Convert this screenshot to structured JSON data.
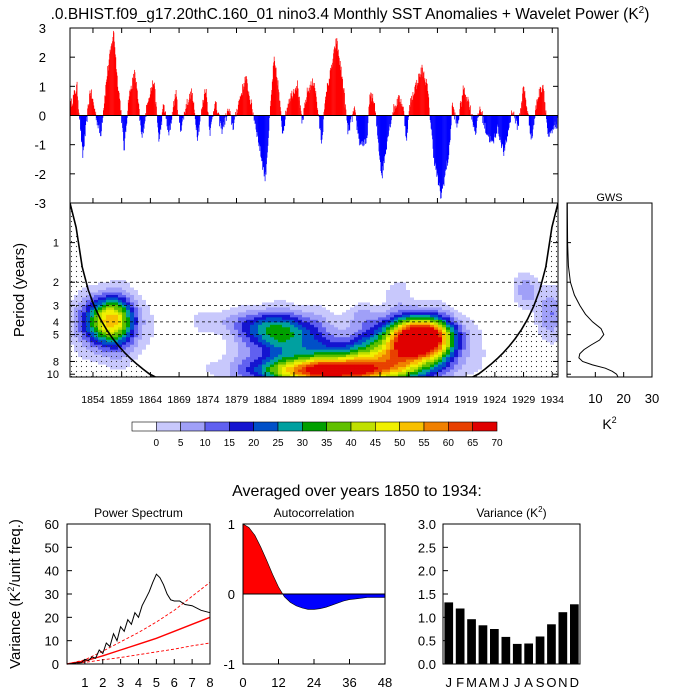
{
  "header": {
    "title": ".0.BHIST.f09_g17.20thC.160_01 nino3.4 Monthly SST Anomalies + Wavelet Power (K",
    "title_sup": "2",
    "title_end": ")",
    "averaged_label": "Averaged over years 1850 to 1934:"
  },
  "colors": {
    "positive": "#ff0000",
    "negative": "#0000ff",
    "bars": "#000000",
    "coi_fill": "#a8a8f8"
  },
  "chart_data": [
    {
      "id": "sst_anomaly",
      "type": "bar",
      "title": "nino3.4 Monthly SST Anomalies",
      "xlim": [
        1850,
        1935
      ],
      "ylim": [
        -3,
        3
      ],
      "yticks": [
        3,
        2,
        1,
        0,
        -1,
        -2,
        -3
      ],
      "key_years": [
        1850,
        1851.2,
        1852.2,
        1853.5,
        1855.3,
        1856.5,
        1857.6,
        1858.2,
        1858.8,
        1859.4,
        1860.2,
        1861.3,
        1862.5,
        1863.6,
        1864.6,
        1865.5,
        1866.3,
        1867.2,
        1868.4,
        1869.2,
        1870.3,
        1871.2,
        1872.2,
        1873.6,
        1874.4,
        1875.2,
        1876.4,
        1877.6,
        1878.4,
        1879.3,
        1880.6,
        1881.4,
        1882.3,
        1884.0,
        1885.5,
        1886.2,
        1887.0,
        1888.0,
        1889.6,
        1890.4,
        1891.3,
        1892.5,
        1893.8,
        1894.6,
        1895.4,
        1896.4,
        1897.6,
        1898.4,
        1899.5,
        1900.4,
        1901.6,
        1902.3,
        1903.0,
        1904.3,
        1905.4,
        1906.3,
        1907.4,
        1908.0,
        1908.6,
        1909.2,
        1910.0,
        1911.3,
        1912.2,
        1913.4,
        1914.6,
        1916.0,
        1916.6,
        1917.4,
        1918.5,
        1919.4,
        1920.6,
        1921.4,
        1922.4,
        1923.6,
        1924.4,
        1925.6,
        1927.0,
        1928.0,
        1929.0,
        1930.4,
        1931.4,
        1932.4,
        1933.3,
        1935.0
      ],
      "key_values": [
        0.3,
        1.0,
        -1.4,
        0.9,
        -0.7,
        1.5,
        2.9,
        1.3,
        0.3,
        -1.2,
        0.6,
        1.5,
        -0.8,
        0.6,
        1.2,
        -0.9,
        0.4,
        -0.7,
        0.8,
        -0.5,
        0.4,
        0.8,
        -0.7,
        1.0,
        -0.6,
        0.5,
        -0.5,
        0.2,
        -0.4,
        0.4,
        1.3,
        0.5,
        -0.3,
        -2.2,
        1.9,
        1.1,
        -0.6,
        0.5,
        1.1,
        -0.3,
        0.8,
        1.2,
        -0.9,
        0.8,
        1.5,
        2.6,
        1.0,
        -0.6,
        0.2,
        -0.9,
        -1.0,
        0.8,
        0.4,
        -2.1,
        -0.6,
        0.2,
        0.6,
        0.3,
        -0.8,
        0.4,
        0.9,
        1.6,
        1.0,
        -1.5,
        -2.8,
        -1.3,
        0.4,
        -0.4,
        0.9,
        0.5,
        -0.6,
        0.3,
        -0.5,
        -1.0,
        -0.4,
        -1.3,
        0.2,
        -0.4,
        1.0,
        -0.8,
        0.6,
        1.1,
        -0.8,
        -0.2
      ],
      "noise_amplitude": 0.18
    },
    {
      "id": "wavelet_power",
      "type": "heatmap",
      "ylabel": "Period (years)",
      "xlim": [
        1850,
        1935
      ],
      "ylim": [
        0.5,
        10.5
      ],
      "xticks": [
        1854,
        1859,
        1864,
        1869,
        1874,
        1879,
        1884,
        1889,
        1894,
        1899,
        1904,
        1909,
        1914,
        1919,
        1924,
        1929,
        1934
      ],
      "yticks": [
        1,
        2,
        3,
        4,
        5,
        8,
        10
      ],
      "dashed_periods": [
        2,
        3,
        4,
        5
      ],
      "levels": [
        0,
        5,
        10,
        15,
        20,
        25,
        30,
        35,
        40,
        45,
        50,
        55,
        60,
        65,
        70
      ],
      "level_colors": [
        "#ffffff",
        "#c8c8fc",
        "#a0a0f8",
        "#6060f0",
        "#1414d0",
        "#0050c8",
        "#00a0a0",
        "#00a000",
        "#60c000",
        "#c0e000",
        "#f0f000",
        "#f8c000",
        "#f08000",
        "#e84000",
        "#e00000"
      ],
      "blobs": [
        {
          "year": 1854.5,
          "period": 4.0,
          "sy": 2.8,
          "sp": 0.42,
          "amp": 16
        },
        {
          "year": 1857.5,
          "period": 3.8,
          "sy": 2.6,
          "sp": 0.4,
          "amp": 36
        },
        {
          "year": 1858.0,
          "period": 4.6,
          "sy": 3.5,
          "sp": 0.55,
          "amp": 14
        },
        {
          "year": 1876.0,
          "period": 4.0,
          "sy": 3.5,
          "sp": 0.22,
          "amp": 7
        },
        {
          "year": 1888.0,
          "period": 4.8,
          "sy": 4.5,
          "sp": 0.36,
          "amp": 30
        },
        {
          "year": 1883.0,
          "period": 4.4,
          "sy": 3.0,
          "sp": 0.3,
          "amp": 14
        },
        {
          "year": 1895.0,
          "period": 9.6,
          "sy": 8.0,
          "sp": 0.22,
          "amp": 58
        },
        {
          "year": 1894.0,
          "period": 8.0,
          "sy": 9.0,
          "sp": 0.35,
          "amp": 22
        },
        {
          "year": 1911.5,
          "period": 5.2,
          "sy": 3.6,
          "sp": 0.34,
          "amp": 72
        },
        {
          "year": 1908.0,
          "period": 6.0,
          "sy": 5.5,
          "sp": 0.5,
          "amp": 30
        },
        {
          "year": 1906.0,
          "period": 8.0,
          "sy": 7.0,
          "sp": 0.35,
          "amp": 20
        },
        {
          "year": 1907.0,
          "period": 2.4,
          "sy": 1.5,
          "sp": 0.22,
          "amp": 6
        },
        {
          "year": 1929.5,
          "period": 2.3,
          "sy": 1.4,
          "sp": 0.28,
          "amp": 12
        },
        {
          "year": 1933.5,
          "period": 3.5,
          "sy": 1.6,
          "sp": 0.45,
          "amp": 14
        },
        {
          "year": 1901.0,
          "period": 3.6,
          "sy": 2.0,
          "sp": 0.18,
          "amp": 6
        }
      ],
      "colorbar_labels": [
        "0",
        "5",
        "10",
        "15",
        "20",
        "25",
        "30",
        "35",
        "40",
        "45",
        "50",
        "55",
        "60",
        "65",
        "70"
      ]
    },
    {
      "id": "gws",
      "type": "line",
      "title": "GWS",
      "xlabel": "K",
      "xlabel_sup": "2",
      "xlim": [
        0,
        30
      ],
      "xticks": [
        10,
        20,
        30
      ],
      "period": [
        0.5,
        1.0,
        1.5,
        2.0,
        2.5,
        3.0,
        3.5,
        4.0,
        4.5,
        5.0,
        5.5,
        6.0,
        6.5,
        7.0,
        7.5,
        8.0,
        8.5,
        9.0,
        9.5,
        10.0,
        10.5
      ],
      "power": [
        0.1,
        0.2,
        0.5,
        1.2,
        2.6,
        4.5,
        6.5,
        9.0,
        12.0,
        13.0,
        11.5,
        8.5,
        6.0,
        4.5,
        4.2,
        5.5,
        9.0,
        13.5,
        16.0,
        17.5,
        18.0
      ]
    },
    {
      "id": "power_spectrum",
      "type": "line",
      "title": "Power Spectrum",
      "ylabel": "Variance (K",
      "ylabel_sup": "2",
      "ylabel_end": "/unit freq.)",
      "xlim": [
        0,
        8
      ],
      "ylim": [
        0,
        60
      ],
      "xticks": [
        1,
        2,
        3,
        4,
        5,
        6,
        7,
        8
      ],
      "yticks": [
        0,
        10,
        20,
        30,
        40,
        50,
        60
      ],
      "spectrum_x": [
        0.0,
        0.3,
        0.6,
        0.8,
        1.0,
        1.2,
        1.4,
        1.6,
        1.8,
        2.0,
        2.2,
        2.4,
        2.6,
        2.8,
        3.0,
        3.2,
        3.4,
        3.6,
        3.8,
        4.0,
        4.2,
        4.4,
        4.6,
        4.8,
        5.0,
        5.2,
        5.4,
        5.6,
        5.8,
        6.0,
        6.3,
        6.6,
        7.0,
        7.5,
        8.0
      ],
      "spectrum_y": [
        0.0,
        0.2,
        0.6,
        0.5,
        2.0,
        1.5,
        3.0,
        2.5,
        6.0,
        4.5,
        9.0,
        7.5,
        13.0,
        10.0,
        16.0,
        14.0,
        19.0,
        17.0,
        22.0,
        20.0,
        25.0,
        28.0,
        31.0,
        35.0,
        38.5,
        37.0,
        34.0,
        30.0,
        27.5,
        27.0,
        27.0,
        25.5,
        25.0,
        23.0,
        22.0
      ],
      "red_noise_x": [
        0,
        1,
        2,
        3,
        4,
        5,
        6,
        7,
        8
      ],
      "red_noise_y": [
        0.0,
        1.3,
        3.5,
        6.0,
        8.5,
        11.0,
        14.0,
        17.0,
        20.0
      ],
      "upper_y": [
        0.0,
        1.8,
        5.5,
        9.5,
        13.5,
        18.0,
        23.0,
        29.0,
        35.0
      ],
      "lower_y": [
        0.0,
        0.7,
        1.8,
        2.8,
        4.0,
        5.2,
        6.4,
        7.8,
        9.0
      ]
    },
    {
      "id": "autocorrelation",
      "type": "area",
      "title": "Autocorrelation",
      "xlim": [
        0,
        48
      ],
      "ylim": [
        -1,
        1
      ],
      "xticks": [
        0,
        12,
        24,
        36,
        48
      ],
      "yticks": [
        1,
        0,
        -1
      ],
      "lag": [
        0,
        2,
        4,
        6,
        8,
        10,
        12,
        14,
        16,
        18,
        20,
        22,
        24,
        26,
        28,
        30,
        32,
        34,
        36,
        38,
        40,
        42,
        44,
        46,
        48
      ],
      "value": [
        1.0,
        0.95,
        0.84,
        0.67,
        0.48,
        0.28,
        0.1,
        -0.04,
        -0.12,
        -0.17,
        -0.2,
        -0.22,
        -0.22,
        -0.21,
        -0.19,
        -0.16,
        -0.13,
        -0.1,
        -0.08,
        -0.07,
        -0.06,
        -0.05,
        -0.05,
        -0.05,
        -0.05
      ]
    },
    {
      "id": "monthly_variance",
      "type": "bar",
      "title": "Variance (K",
      "title_sup": "2",
      "title_end": ")",
      "ylim": [
        0,
        3
      ],
      "yticks": [
        "0.0",
        "0.5",
        "1.0",
        "1.5",
        "2.0",
        "2.5",
        "3.0"
      ],
      "categories": [
        "J",
        "F",
        "M",
        "A",
        "M",
        "J",
        "J",
        "A",
        "S",
        "O",
        "N",
        "D"
      ],
      "values": [
        1.32,
        1.19,
        0.96,
        0.83,
        0.75,
        0.58,
        0.43,
        0.44,
        0.59,
        0.85,
        1.11,
        1.28
      ]
    }
  ]
}
